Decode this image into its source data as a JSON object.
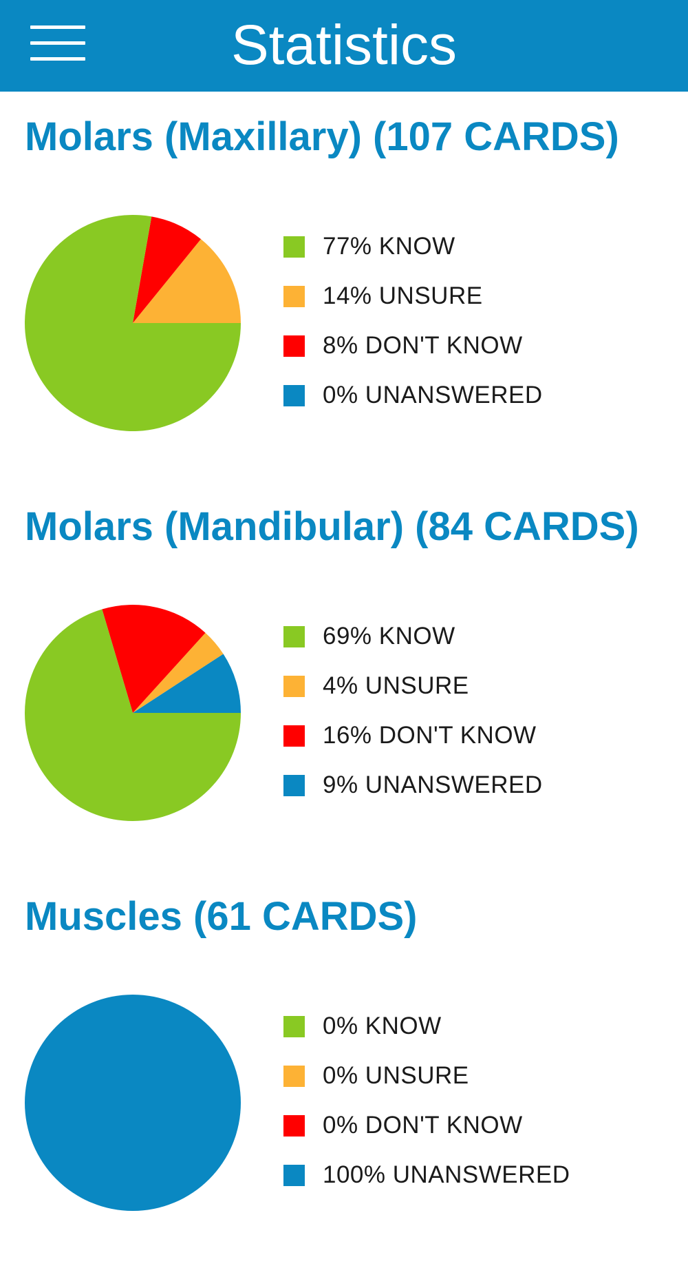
{
  "header": {
    "title": "Statistics",
    "menu_icon": "hamburger-menu-icon",
    "background_color": "#0a88c2"
  },
  "colors": {
    "know": "#89c923",
    "unsure": "#fdb235",
    "dont_know": "#ff0000",
    "unanswered": "#0a88c2"
  },
  "sections": [
    {
      "title": "Molars (Maxillary) (107 CARDS)",
      "legend": [
        {
          "key": "know",
          "label": "77% KNOW"
        },
        {
          "key": "unsure",
          "label": "14% UNSURE"
        },
        {
          "key": "dont_know",
          "label": "8% DON'T KNOW"
        },
        {
          "key": "unanswered",
          "label": "0% UNANSWERED"
        }
      ]
    },
    {
      "title": "Molars (Mandibular) (84 CARDS)",
      "legend": [
        {
          "key": "know",
          "label": "69% KNOW"
        },
        {
          "key": "unsure",
          "label": "4% UNSURE"
        },
        {
          "key": "dont_know",
          "label": "16% DON'T KNOW"
        },
        {
          "key": "unanswered",
          "label": "9% UNANSWERED"
        }
      ]
    },
    {
      "title": "Muscles (61 CARDS)",
      "legend": [
        {
          "key": "know",
          "label": "0% KNOW"
        },
        {
          "key": "unsure",
          "label": "0% UNSURE"
        },
        {
          "key": "dont_know",
          "label": "0% DON'T KNOW"
        },
        {
          "key": "unanswered",
          "label": "100% UNANSWERED"
        }
      ]
    }
  ],
  "chart_data": [
    {
      "type": "pie",
      "categories": [
        "KNOW",
        "UNSURE",
        "DON'T KNOW",
        "UNANSWERED"
      ],
      "values": [
        77,
        14,
        8,
        0
      ]
    },
    {
      "type": "pie",
      "categories": [
        "KNOW",
        "UNSURE",
        "DON'T KNOW",
        "UNANSWERED"
      ],
      "values": [
        69,
        4,
        16,
        9
      ]
    },
    {
      "type": "pie",
      "categories": [
        "KNOW",
        "UNSURE",
        "DON'T KNOW",
        "UNANSWERED"
      ],
      "values": [
        0,
        0,
        0,
        100
      ]
    }
  ]
}
